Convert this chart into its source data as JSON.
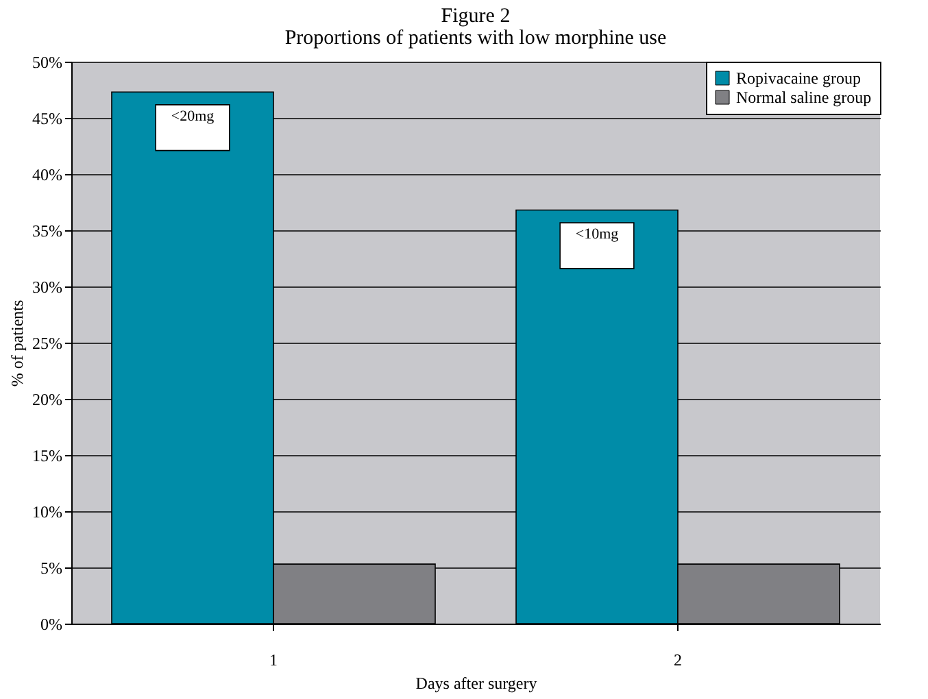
{
  "chart_data": {
    "type": "bar",
    "title": "Figure 2",
    "subtitle": "Proportions of patients with low morphine use",
    "xlabel": "Days after surgery",
    "ylabel": "% of patients",
    "categories": [
      "1",
      "2"
    ],
    "series": [
      {
        "name": "Ropivacaine group",
        "color": "#008ca8",
        "values": [
          47.3,
          36.8
        ]
      },
      {
        "name": "Normal saline group",
        "color": "#808084",
        "values": [
          5.3,
          5.3
        ]
      }
    ],
    "ylim": [
      0,
      50
    ],
    "yticks": [
      {
        "value": 0,
        "label": "0%"
      },
      {
        "value": 5,
        "label": "5%"
      },
      {
        "value": 10,
        "label": "10%"
      },
      {
        "value": 15,
        "label": "15%"
      },
      {
        "value": 20,
        "label": "20%"
      },
      {
        "value": 25,
        "label": "25%"
      },
      {
        "value": 30,
        "label": "30%"
      },
      {
        "value": 35,
        "label": "35%"
      },
      {
        "value": 40,
        "label": "40%"
      },
      {
        "value": 45,
        "label": "45%"
      },
      {
        "value": 50,
        "label": "50%"
      }
    ],
    "grid": "y",
    "legend": "top right",
    "annotations": [
      "<20mg",
      "<10mg"
    ]
  }
}
